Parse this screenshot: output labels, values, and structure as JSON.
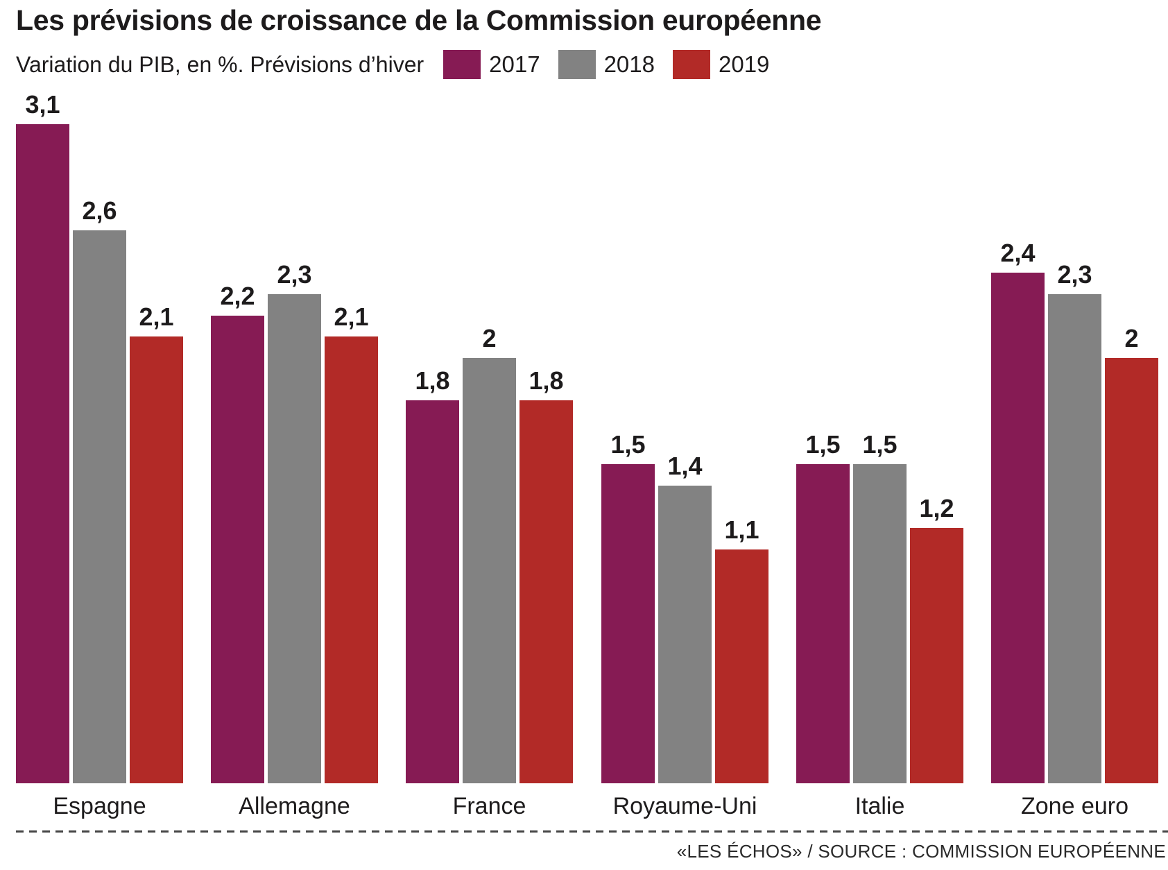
{
  "header": {
    "title": "Les prévisions de croissance de la Commission européenne",
    "subtitle": "Variation du PIB, en %. Prévisions d’hiver"
  },
  "legend": {
    "items": [
      {
        "label": "2017",
        "color": "#861B54"
      },
      {
        "label": "2018",
        "color": "#828282"
      },
      {
        "label": "2019",
        "color": "#B22A27"
      }
    ]
  },
  "chart_data": {
    "type": "bar",
    "title": "Les prévisions de croissance de la Commission européenne",
    "subtitle": "Variation du PIB, en %. Prévisions d’hiver",
    "ylabel": "Variation du PIB, en %",
    "xlabel": "",
    "categories": [
      "Espagne",
      "Allemagne",
      "France",
      "Royaume-Uni",
      "Italie",
      "Zone euro"
    ],
    "series": [
      {
        "name": "2017",
        "color": "#861B54",
        "values": [
          3.1,
          2.2,
          1.8,
          1.5,
          1.5,
          2.4
        ],
        "labels": [
          "3,1",
          "2,2",
          "1,8",
          "1,5",
          "1,5",
          "2,4"
        ]
      },
      {
        "name": "2018",
        "color": "#828282",
        "values": [
          2.6,
          2.3,
          2.0,
          1.4,
          1.5,
          2.3
        ],
        "labels": [
          "2,6",
          "2,3",
          "2",
          "1,4",
          "1,5",
          "2,3"
        ]
      },
      {
        "name": "2019",
        "color": "#B22A27",
        "values": [
          2.1,
          2.1,
          1.8,
          1.1,
          1.2,
          2.0
        ],
        "labels": [
          "2,1",
          "2,1",
          "1,8",
          "1,1",
          "1,2",
          "2"
        ]
      }
    ],
    "ylim": [
      0,
      3.27
    ],
    "grid": false,
    "legend_position": "top"
  },
  "footer": {
    "source": "«LES ÉCHOS» / SOURCE : COMMISSION EUROPÉENNE"
  }
}
